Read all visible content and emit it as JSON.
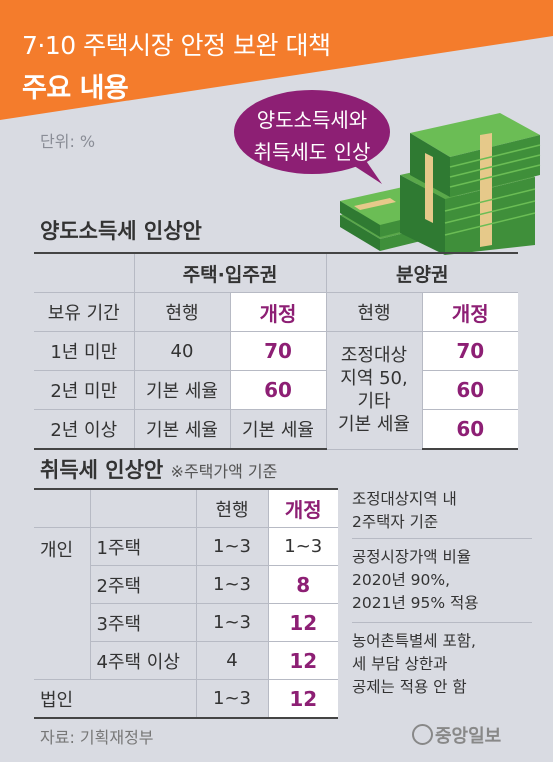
{
  "header": {
    "title_line1": "7·10 주택시장 안정 보완 대책",
    "title_line2": "주요 내용",
    "unit": "단위: %",
    "accent_color": "#f47c2c",
    "highlight_color": "#8d1f74"
  },
  "bubble": {
    "line1": "양도소득세와",
    "line2": "취득세도 인상"
  },
  "capital_gains": {
    "title": "양도소득세 인상안",
    "col_group_housing": "주택·입주권",
    "col_group_presale": "분양권",
    "row_header": "보유 기간",
    "col_current": "현행",
    "col_revised": "개정",
    "rows": [
      {
        "period": "1년 미만",
        "housing_current": "40",
        "housing_revised": "70",
        "presale_revised": "70"
      },
      {
        "period": "2년 미만",
        "housing_current": "기본 세율",
        "housing_revised": "60",
        "presale_revised": "60"
      },
      {
        "period": "2년 이상",
        "housing_current": "기본 세율",
        "housing_revised": "기본 세율",
        "presale_revised": "60"
      }
    ],
    "presale_current_merged": "조정대상\n지역 50,\n기타\n기본 세율"
  },
  "acquisition": {
    "title": "취득세 인상안",
    "subtitle": "※주택가액 기준",
    "col_current": "현행",
    "col_revised": "개정",
    "group_individual": "개인",
    "group_corporate": "법인",
    "rows": [
      {
        "label": "1주택",
        "current": "1~3",
        "revised": "1~3"
      },
      {
        "label": "2주택",
        "current": "1~3",
        "revised": "8"
      },
      {
        "label": "3주택",
        "current": "1~3",
        "revised": "12"
      },
      {
        "label": "4주택 이상",
        "current": "4",
        "revised": "12"
      }
    ],
    "corporate_row": {
      "current": "1~3",
      "revised": "12"
    }
  },
  "notes": [
    "조정대상지역 내\n2주택자 기준",
    "공정시장가액 비율\n2020년 90%,\n2021년 95% 적용",
    "농어촌특별세 포함,\n세 부담 상한과\n공제는 적용 안 함"
  ],
  "footer": {
    "source": "자료: 기획재정부",
    "logo": "중앙일보"
  }
}
